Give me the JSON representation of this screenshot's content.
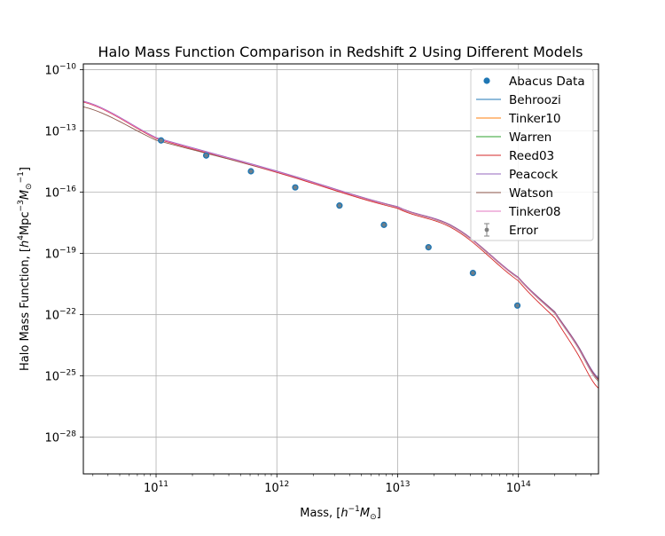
{
  "chart_data": {
    "type": "line",
    "title": "Halo Mass Function Comparison in Redshift 2 Using Different Models",
    "xlabel": "Mass, [$h^{-1}M_\\odot$]",
    "ylabel": "Halo Mass Function, [$h^4$Mpc$^{-3}M_\\odot^{-1}$]",
    "xscale": "log",
    "yscale": "log",
    "xlim": [
      25000000000.0,
      460000000000000.0
    ],
    "ylim": [
      1.6e-30,
      1.9e-10
    ],
    "grid": true,
    "legend_position": "top-right",
    "x_tick_labels": [
      {
        "base": "10",
        "exp": "11",
        "value": 100000000000.0
      },
      {
        "base": "10",
        "exp": "12",
        "value": 1000000000000.0
      },
      {
        "base": "10",
        "exp": "13",
        "value": 10000000000000.0
      },
      {
        "base": "10",
        "exp": "14",
        "value": 100000000000000.0
      }
    ],
    "y_tick_labels": [
      {
        "base": "10",
        "exp": "−28",
        "value": 1e-28
      },
      {
        "base": "10",
        "exp": "−25",
        "value": 1e-25
      },
      {
        "base": "10",
        "exp": "−22",
        "value": 1e-22
      },
      {
        "base": "10",
        "exp": "−19",
        "value": 1e-19
      },
      {
        "base": "10",
        "exp": "−16",
        "value": 1e-16
      },
      {
        "base": "10",
        "exp": "−13",
        "value": 1e-13
      },
      {
        "base": "10",
        "exp": "−10",
        "value": 1e-10
      }
    ],
    "scatter": {
      "name": "Abacus Data",
      "color": "#1f77b4",
      "x": [
        110000000000.0,
        260000000000.0,
        610000000000.0,
        1420000000000.0,
        3300000000000.0,
        7700000000000.0,
        18000000000000.0,
        42000000000000.0,
        98000000000000.0
      ],
      "y": [
        3.4e-14,
        6.2e-15,
        1.05e-15,
        1.7e-16,
        2.2e-17,
        2.5e-18,
        2e-19,
        1.1e-20,
        2.8e-22
      ]
    },
    "error": {
      "name": "Error",
      "color": "#808080"
    },
    "series": [
      {
        "name": "Behroozi",
        "color": "#1f77b4",
        "x": [
          25000000000.0,
          100000000000.0,
          1000000000000.0,
          10000000000000.0,
          30000000000000.0,
          100000000000000.0,
          200000000000000.0,
          300000000000000.0,
          460000000000000.0
        ],
        "y": [
          2.8e-12,
          4.6e-14,
          1.05e-15,
          1.9e-17,
          1.8e-18,
          6.5e-21,
          1.3e-22,
          4e-24,
          7e-26
        ]
      },
      {
        "name": "Tinker10",
        "color": "#ff7f0e",
        "x": [
          25000000000.0,
          100000000000.0,
          1000000000000.0,
          10000000000000.0,
          30000000000000.0,
          100000000000000.0,
          200000000000000.0,
          300000000000000.0,
          460000000000000.0
        ],
        "y": [
          2.75e-12,
          4.5e-14,
          1.02e-15,
          1.85e-17,
          1.7e-18,
          6.2e-21,
          1.2e-22,
          3.6e-24,
          6e-26
        ]
      },
      {
        "name": "Warren",
        "color": "#2ca02c",
        "x": [
          25000000000.0,
          100000000000.0,
          1000000000000.0,
          10000000000000.0,
          30000000000000.0,
          100000000000000.0,
          200000000000000.0,
          300000000000000.0,
          460000000000000.0
        ],
        "y": [
          2.7e-12,
          4.4e-14,
          1e-15,
          1.8e-17,
          1.65e-18,
          6e-21,
          1.15e-22,
          3.4e-24,
          5.5e-26
        ]
      },
      {
        "name": "Reed03",
        "color": "#d62728",
        "x": [
          25000000000.0,
          100000000000.0,
          1000000000000.0,
          10000000000000.0,
          30000000000000.0,
          100000000000000.0,
          200000000000000.0,
          300000000000000.0,
          460000000000000.0
        ],
        "y": [
          2.6e-12,
          4.2e-14,
          9.2e-16,
          1.6e-17,
          1.4e-18,
          4.5e-21,
          7e-23,
          1.6e-24,
          2.5e-26
        ]
      },
      {
        "name": "Peacock",
        "color": "#9467bd",
        "x": [
          25000000000.0,
          100000000000.0,
          1000000000000.0,
          10000000000000.0,
          30000000000000.0,
          100000000000000.0,
          200000000000000.0,
          300000000000000.0,
          460000000000000.0
        ],
        "y": [
          2.85e-12,
          4.7e-14,
          1.08e-15,
          1.95e-17,
          1.85e-18,
          6.8e-21,
          1.4e-22,
          4.3e-24,
          8e-26
        ]
      },
      {
        "name": "Watson",
        "color": "#8c564b",
        "x": [
          25000000000.0,
          100000000000.0,
          1000000000000.0,
          10000000000000.0,
          30000000000000.0,
          100000000000000.0,
          200000000000000.0,
          300000000000000.0,
          460000000000000.0
        ],
        "y": [
          1.5e-12,
          3.5e-14,
          9.8e-16,
          1.85e-17,
          1.75e-18,
          6.4e-21,
          1.3e-22,
          3.9e-24,
          6.8e-26
        ]
      },
      {
        "name": "Tinker08",
        "color": "#e377c2",
        "x": [
          25000000000.0,
          100000000000.0,
          1000000000000.0,
          10000000000000.0,
          30000000000000.0,
          100000000000000.0,
          200000000000000.0,
          300000000000000.0,
          460000000000000.0
        ],
        "y": [
          2.72e-12,
          4.45e-14,
          1.01e-15,
          1.82e-17,
          1.68e-18,
          6.1e-21,
          1.18e-22,
          3.5e-24,
          5.8e-26
        ]
      }
    ]
  }
}
